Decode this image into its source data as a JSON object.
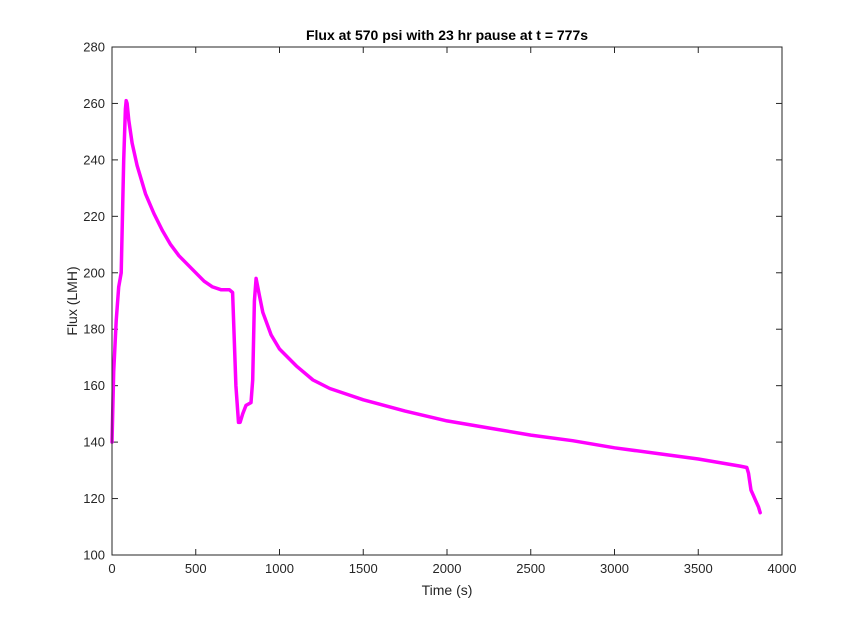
{
  "chart_data": {
    "type": "line",
    "title": "Flux at 570 psi with 23 hr pause at t = 777s",
    "xlabel": "Time (s)",
    "ylabel": "Flux (LMH)",
    "xlim": [
      0,
      4000
    ],
    "ylim": [
      100,
      280
    ],
    "xticks": [
      0,
      500,
      1000,
      1500,
      2000,
      2500,
      3000,
      3500,
      4000
    ],
    "yticks": [
      100,
      120,
      140,
      160,
      180,
      200,
      220,
      240,
      260,
      280
    ],
    "grid": false,
    "legend": "none",
    "series": [
      {
        "color": "#ff00ff",
        "x": [
          0,
          10,
          25,
          40,
          55,
          70,
          80,
          85,
          90,
          100,
          120,
          150,
          200,
          250,
          300,
          350,
          400,
          450,
          500,
          550,
          600,
          650,
          700,
          720,
          740,
          755,
          765,
          780,
          800,
          830,
          840,
          850,
          860,
          880,
          900,
          950,
          1000,
          1100,
          1200,
          1300,
          1400,
          1500,
          1750,
          2000,
          2250,
          2500,
          2750,
          3000,
          3250,
          3500,
          3750,
          3790,
          3800,
          3805,
          3815,
          3830,
          3845,
          3860,
          3870
        ],
        "y": [
          140,
          165,
          183,
          195,
          200,
          240,
          258,
          261,
          260,
          254,
          246,
          238,
          228,
          221,
          215,
          210,
          206,
          203,
          200,
          197,
          195,
          194,
          194,
          193,
          160,
          147,
          147,
          150,
          153,
          154,
          162,
          190,
          198,
          192,
          186,
          178,
          173,
          167,
          162,
          159,
          157,
          155,
          151,
          147.5,
          145,
          142.5,
          140.5,
          138,
          136,
          134,
          131.5,
          131,
          129,
          127,
          123,
          121,
          119,
          117,
          115
        ]
      }
    ]
  }
}
